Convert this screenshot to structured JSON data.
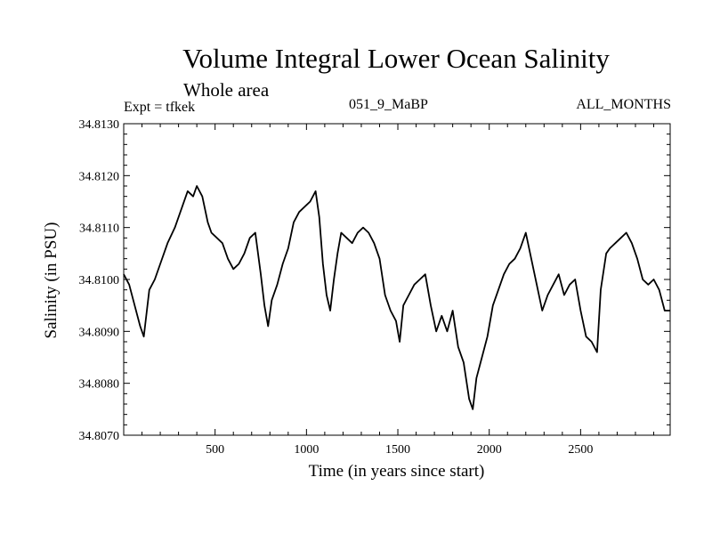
{
  "header": {
    "title": "Volume Integral Lower Ocean Salinity",
    "subtitle": "Whole area",
    "expt": "Expt = tfkek",
    "run_id": "051_9_MaBP",
    "months": "ALL_MONTHS"
  },
  "chart_data": {
    "type": "line",
    "title": "Volume Integral Lower Ocean Salinity",
    "xlabel": "Time (in years since start)",
    "ylabel": "Salinity (in PSU)",
    "xlim": [
      0,
      2990
    ],
    "ylim": [
      34.807,
      34.813
    ],
    "xticks": [
      500,
      1000,
      1500,
      2000,
      2500
    ],
    "yticks": [
      "34.8070",
      "34.8080",
      "34.8090",
      "34.8100",
      "34.8110",
      "34.8120",
      "34.8130"
    ],
    "grid": false,
    "series": [
      {
        "x": [
          0,
          30,
          60,
          90,
          110,
          140,
          170,
          200,
          240,
          280,
          320,
          350,
          380,
          400,
          430,
          460,
          480,
          510,
          540,
          570,
          600,
          630,
          660,
          690,
          720,
          750,
          770,
          790,
          810,
          840,
          870,
          900,
          930,
          960,
          990,
          1020,
          1050,
          1070,
          1090,
          1110,
          1130,
          1150,
          1170,
          1190,
          1220,
          1250,
          1280,
          1310,
          1340,
          1370,
          1400,
          1430,
          1460,
          1490,
          1510,
          1530,
          1560,
          1590,
          1620,
          1650,
          1680,
          1710,
          1740,
          1770,
          1800,
          1830,
          1860,
          1890,
          1910,
          1930,
          1960,
          1990,
          2020,
          2050,
          2080,
          2110,
          2140,
          2170,
          2200,
          2230,
          2260,
          2290,
          2320,
          2350,
          2380,
          2410,
          2440,
          2470,
          2500,
          2530,
          2560,
          2590,
          2610,
          2640,
          2660,
          2690,
          2720,
          2750,
          2780,
          2810,
          2840,
          2870,
          2900,
          2930,
          2960,
          2990
        ],
        "y": [
          34.8101,
          34.8099,
          34.8095,
          34.8091,
          34.8089,
          34.8098,
          34.81,
          34.8103,
          34.8107,
          34.811,
          34.8114,
          34.8117,
          34.8116,
          34.8118,
          34.8116,
          34.8111,
          34.8109,
          34.8108,
          34.8107,
          34.8104,
          34.8102,
          34.8103,
          34.8105,
          34.8108,
          34.8109,
          34.8101,
          34.8095,
          34.8091,
          34.8096,
          34.8099,
          34.8103,
          34.8106,
          34.8111,
          34.8113,
          34.8114,
          34.8115,
          34.8117,
          34.8112,
          34.8103,
          34.8097,
          34.8094,
          34.81,
          34.8105,
          34.8109,
          34.8108,
          34.8107,
          34.8109,
          34.811,
          34.8109,
          34.8107,
          34.8104,
          34.8097,
          34.8094,
          34.8092,
          34.8088,
          34.8095,
          34.8097,
          34.8099,
          34.81,
          34.8101,
          34.8095,
          34.809,
          34.8093,
          34.809,
          34.8094,
          34.8087,
          34.8084,
          34.8077,
          34.8075,
          34.8081,
          34.8085,
          34.8089,
          34.8095,
          34.8098,
          34.8101,
          34.8103,
          34.8104,
          34.8106,
          34.8109,
          34.8104,
          34.8099,
          34.8094,
          34.8097,
          34.8099,
          34.8101,
          34.8097,
          34.8099,
          34.81,
          34.8094,
          34.8089,
          34.8088,
          34.8086,
          34.8098,
          34.8105,
          34.8106,
          34.8107,
          34.8108,
          34.8109,
          34.8107,
          34.8104,
          34.81,
          34.8099,
          34.81,
          34.8098,
          34.8094,
          34.8094
        ]
      }
    ]
  }
}
